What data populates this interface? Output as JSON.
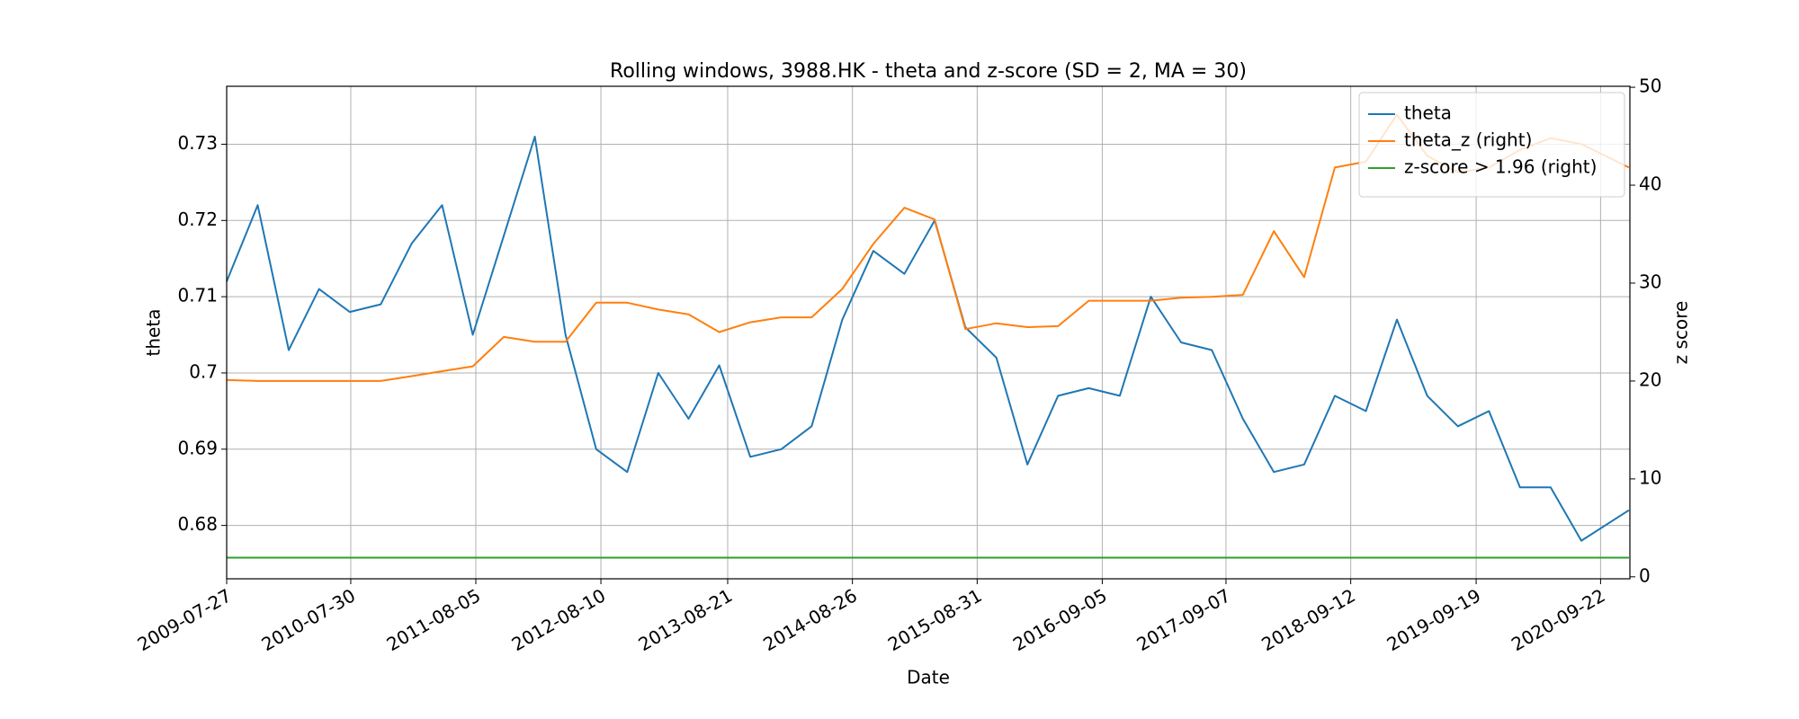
{
  "chart_data": {
    "type": "line",
    "title": "Rolling windows, 3988.HK - theta and z-score (SD = 2, MA = 30)",
    "xlabel": "Date",
    "ylabel": "theta",
    "y2label": "z score",
    "x": [
      "2009-07-27",
      "2009-10-27",
      "2010-01-27",
      "2010-04-27",
      "2010-07-27",
      "2010-10-27",
      "2011-01-27",
      "2011-04-27",
      "2011-07-27",
      "2011-10-27",
      "2012-01-27",
      "2012-04-27",
      "2012-07-27",
      "2012-10-27",
      "2013-01-27",
      "2013-04-27",
      "2013-07-27",
      "2013-10-27",
      "2014-01-27",
      "2014-04-27",
      "2014-07-27",
      "2014-10-27",
      "2015-01-27",
      "2015-04-27",
      "2015-07-27",
      "2015-10-27",
      "2016-01-27",
      "2016-04-27",
      "2016-07-27",
      "2016-10-27",
      "2017-01-27",
      "2017-04-27",
      "2017-07-27",
      "2017-10-27",
      "2018-01-27",
      "2018-04-27",
      "2018-07-27",
      "2018-10-27",
      "2019-01-27",
      "2019-04-27",
      "2019-07-27",
      "2019-10-27",
      "2020-01-27",
      "2020-04-27",
      "2020-07-27",
      "2020-12-15"
    ],
    "series": [
      {
        "name": "theta",
        "color": "#1f77b4",
        "axis": "y",
        "values": [
          0.712,
          0.722,
          0.703,
          0.711,
          0.708,
          0.709,
          0.717,
          0.722,
          0.705,
          0.718,
          0.731,
          0.705,
          0.69,
          0.687,
          0.7,
          0.694,
          0.701,
          0.689,
          0.69,
          0.693,
          0.707,
          0.716,
          0.713,
          0.72,
          0.706,
          0.702,
          0.688,
          0.697,
          0.698,
          0.697,
          0.71,
          0.704,
          0.703,
          0.694,
          0.687,
          0.688,
          0.697,
          0.695,
          0.707,
          0.697,
          0.693,
          0.695,
          0.685,
          0.685,
          0.678,
          0.682
        ]
      },
      {
        "name": "theta_z (right)",
        "color": "#ff7f0e",
        "axis": "y2",
        "values": [
          20.1,
          20,
          20,
          20,
          20,
          20,
          20.5,
          21,
          21.5,
          24.5,
          24,
          24,
          28,
          28,
          27.3,
          26.8,
          25,
          26,
          26.5,
          26.5,
          29.4,
          34,
          37.7,
          36.5,
          25.3,
          25.9,
          25.5,
          25.6,
          28.2,
          28.2,
          28.2,
          28.5,
          28.6,
          28.8,
          35.3,
          30.6,
          41.8,
          42.4,
          47.2,
          43,
          41.3,
          41.8,
          43.6,
          44.8,
          44.2,
          41.8
        ]
      },
      {
        "name": "z-score > 1.96 (right)",
        "color": "#2ca02c",
        "axis": "y2",
        "values": [
          1.96,
          1.96,
          1.96,
          1.96,
          1.96,
          1.96,
          1.96,
          1.96,
          1.96,
          1.96,
          1.96,
          1.96,
          1.96,
          1.96,
          1.96,
          1.96,
          1.96,
          1.96,
          1.96,
          1.96,
          1.96,
          1.96,
          1.96,
          1.96,
          1.96,
          1.96,
          1.96,
          1.96,
          1.96,
          1.96,
          1.96,
          1.96,
          1.96,
          1.96,
          1.96,
          1.96,
          1.96,
          1.96,
          1.96,
          1.96,
          1.96,
          1.96,
          1.96,
          1.96,
          1.96,
          1.96
        ]
      }
    ],
    "xlim": [
      "2009-07-27",
      "2020-12-18"
    ],
    "xticks": [
      "2009-07-27",
      "2010-07-30",
      "2011-08-05",
      "2012-08-10",
      "2013-08-21",
      "2014-08-26",
      "2015-08-31",
      "2016-09-05",
      "2017-09-07",
      "2018-09-12",
      "2019-09-19",
      "2020-09-22"
    ],
    "ylim": [
      0.673,
      0.7376
    ],
    "yticks": [
      0.68,
      0.69,
      0.7,
      0.71,
      0.72,
      0.73
    ],
    "y2lim": [
      -0.2,
      50.1
    ],
    "y2ticks": [
      0,
      10,
      20,
      30,
      40,
      50
    ],
    "grid": true,
    "legend": "upper right"
  }
}
